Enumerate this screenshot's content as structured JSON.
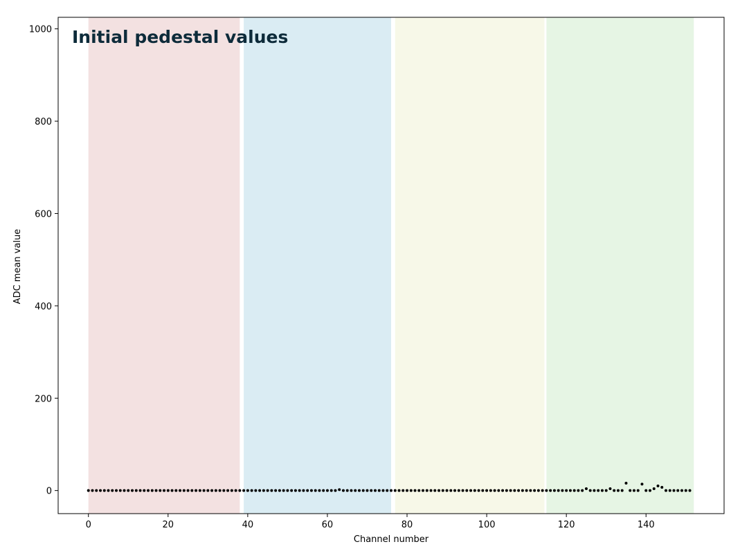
{
  "chart_data": {
    "type": "scatter",
    "title": "Initial pedestal values",
    "xlabel": "Channel number",
    "ylabel": "ADC mean value",
    "xlim": [
      -7.6,
      159.6
    ],
    "ylim": [
      -50,
      1025
    ],
    "x_ticks": [
      0,
      20,
      40,
      60,
      80,
      100,
      120,
      140
    ],
    "y_ticks": [
      0,
      200,
      400,
      600,
      800,
      1000
    ],
    "grid": false,
    "title_color": "#0d2b3a",
    "marker_color": "#000000",
    "bands": [
      {
        "x0": 0,
        "x1": 38,
        "color": "#f3e1e1"
      },
      {
        "x0": 39,
        "x1": 76,
        "color": "#daecf3"
      },
      {
        "x0": 77,
        "x1": 114.5,
        "color": "#f7f8e8"
      },
      {
        "x0": 115,
        "x1": 152,
        "color": "#e6f5e4"
      }
    ],
    "series": [
      {
        "x_start": 0,
        "values": [
          0,
          0,
          0,
          0,
          0,
          0,
          0,
          0,
          0,
          0,
          0,
          0,
          0,
          0,
          0,
          0,
          0,
          0,
          0,
          0,
          0,
          0,
          0,
          0,
          0,
          0,
          0,
          0,
          0,
          0,
          0,
          0,
          0,
          0,
          0,
          0,
          0,
          0,
          0,
          0,
          0,
          0,
          0,
          0,
          0,
          0,
          0,
          0,
          0,
          0,
          0,
          0,
          0,
          0,
          0,
          0,
          0,
          0,
          0,
          0,
          0,
          0,
          0,
          2,
          0,
          0,
          0,
          0,
          0,
          0,
          0,
          0,
          0,
          0,
          0,
          0,
          0,
          0,
          0,
          0,
          0,
          0,
          0,
          0,
          0,
          0,
          0,
          0,
          0,
          0,
          0,
          0,
          0,
          0,
          0,
          0,
          0,
          0,
          0,
          0,
          0,
          0,
          0,
          0,
          0,
          0,
          0,
          0,
          0,
          0,
          0,
          0,
          0,
          0,
          0,
          0,
          0,
          0,
          0,
          0,
          0,
          0,
          0,
          0,
          0,
          4,
          0,
          0,
          0,
          0,
          0,
          4,
          0,
          0,
          0,
          16,
          0,
          0,
          0,
          14,
          0,
          0,
          4,
          10,
          7,
          0,
          0,
          0,
          0,
          0,
          0,
          0
        ]
      }
    ]
  }
}
